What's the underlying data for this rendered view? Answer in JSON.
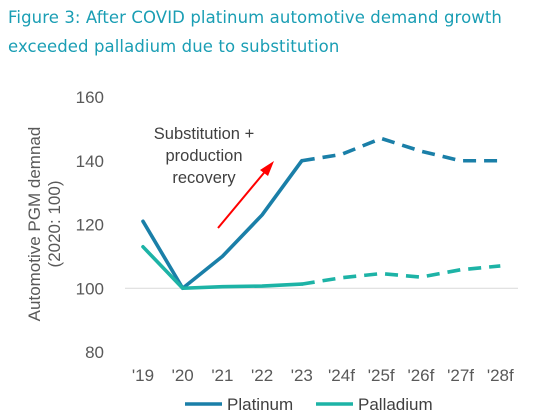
{
  "title": "Figure 3: After COVID platinum automotive demand growth exceeded palladium due to substitution",
  "colors": {
    "title": "#1a9eb4",
    "platinum": "#1a7fa8",
    "palladium": "#1db3a6",
    "arrow": "#ff0000",
    "text": "#595959"
  },
  "chart_data": {
    "type": "line",
    "title": "",
    "xlabel": "",
    "ylabel": "Automotive PGM demnad (2020: 100)",
    "ylim": [
      80,
      160
    ],
    "yticks": [
      80,
      100,
      120,
      140,
      160
    ],
    "categories": [
      "'19",
      "'20",
      "'21",
      "'22",
      "'23",
      "'24f",
      "'25f",
      "'26f",
      "'27f",
      "'28f"
    ],
    "forecast_from_index": 4,
    "series": [
      {
        "name": "Platinum",
        "values": [
          121,
          100,
          110,
          123,
          140,
          142,
          147,
          143,
          140,
          140
        ]
      },
      {
        "name": "Palladium",
        "values": [
          113,
          100,
          100.5,
          100.7,
          101.3,
          103.3,
          104.6,
          103.5,
          105.8,
          107.0
        ]
      }
    ],
    "annotation": {
      "lines": [
        "Substitution +",
        "production",
        "recovery"
      ]
    },
    "legend_position": "bottom",
    "grid": false
  }
}
